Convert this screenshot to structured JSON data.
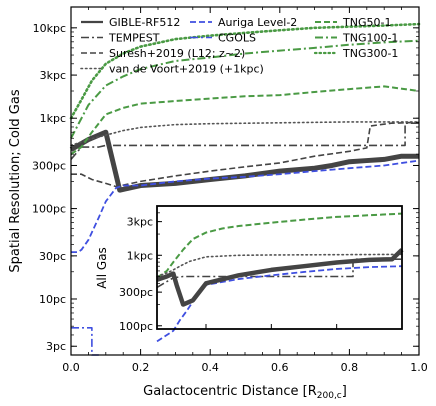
{
  "chart_data": {
    "type": "line",
    "xlabel": "Galactocentric Distance [R",
    "xlabel_sub": "200,c",
    "xlabel_end": "]",
    "ylabel": "Spatial Resolution; Cold Gas",
    "xlim": [
      0,
      1.0
    ],
    "ylim_pc": [
      2.4,
      17000
    ],
    "y_scale": "log",
    "x_ticks": [
      "0.0",
      "0.2",
      "0.4",
      "0.6",
      "0.8",
      "1.0"
    ],
    "y_ticks": [
      "3pc",
      "10pc",
      "30pc",
      "100pc",
      "300pc",
      "1kpc",
      "3kpc",
      "10kpc"
    ],
    "y_tick_values_pc": [
      3,
      10,
      30,
      100,
      300,
      1000,
      3000,
      10000
    ],
    "legend_position": "top",
    "series": [
      {
        "name": "GIBLE-RF512",
        "color": "#444444",
        "dash": "solid",
        "width": 5,
        "x": [
          0.0,
          0.05,
          0.1,
          0.14,
          0.2,
          0.3,
          0.4,
          0.5,
          0.6,
          0.7,
          0.75,
          0.8,
          0.85,
          0.9,
          0.95,
          1.0
        ],
        "y": [
          450,
          580,
          700,
          160,
          180,
          190,
          210,
          230,
          260,
          280,
          300,
          330,
          340,
          350,
          380,
          380
        ]
      },
      {
        "name": "TEMPEST",
        "color": "#444444",
        "dash": "dashdot",
        "width": 1.6,
        "x": [
          0.0,
          0.03,
          0.08,
          0.1,
          0.2,
          0.4,
          0.6,
          0.8,
          0.96,
          0.96,
          1.0
        ],
        "y": [
          350,
          480,
          480,
          500,
          500,
          500,
          500,
          500,
          500,
          880,
          880
        ]
      },
      {
        "name": "Suresh+2019 (L12; z~2)",
        "color": "#444444",
        "dash": "dashed",
        "width": 1.6,
        "x": [
          0.0,
          0.03,
          0.06,
          0.1,
          0.13,
          0.2,
          0.3,
          0.4,
          0.5,
          0.6,
          0.7,
          0.8,
          0.85,
          0.86,
          0.92,
          1.0
        ],
        "y": [
          240,
          240,
          210,
          190,
          175,
          200,
          230,
          260,
          290,
          320,
          380,
          430,
          470,
          820,
          880,
          900
        ]
      },
      {
        "name": "van de Voort+2019 (+1kpc)",
        "color": "#555555",
        "dash": "dotted",
        "width": 1.6,
        "x": [
          0.0,
          0.05,
          0.1,
          0.15,
          0.2,
          0.3,
          0.4,
          0.5,
          0.6,
          0.7,
          0.8,
          0.9,
          1.0
        ],
        "y": [
          500,
          580,
          650,
          730,
          790,
          850,
          870,
          880,
          890,
          900,
          910,
          910,
          910
        ]
      },
      {
        "name": "Auriga Level-2",
        "color": "#3f4fe0",
        "dash": "dashed",
        "width": 1.8,
        "x": [
          0.0,
          0.02,
          0.03,
          0.05,
          0.08,
          0.1,
          0.13,
          0.15,
          0.2,
          0.3,
          0.4,
          0.5,
          0.6,
          0.7,
          0.8,
          0.9,
          1.0
        ],
        "y": [
          33,
          33,
          35,
          45,
          80,
          120,
          170,
          180,
          180,
          200,
          215,
          225,
          240,
          260,
          280,
          300,
          340
        ]
      },
      {
        "name": "CGOLS",
        "color": "#3f4fe0",
        "dash": "dashdot",
        "width": 1.6,
        "x": [
          0.0,
          0.06,
          0.06,
          0.08
        ],
        "y": [
          4.8,
          4.8,
          2.4,
          2.4
        ]
      },
      {
        "name": "TNG50-1",
        "color": "#4a9a44",
        "dash": "dashed",
        "width": 2.0,
        "x": [
          0.0,
          0.03,
          0.06,
          0.1,
          0.15,
          0.2,
          0.3,
          0.4,
          0.5,
          0.6,
          0.7,
          0.8,
          0.9,
          1.0
        ],
        "y": [
          400,
          480,
          700,
          1100,
          1300,
          1450,
          1550,
          1650,
          1750,
          1800,
          1950,
          2100,
          2250,
          2000
        ]
      },
      {
        "name": "TNG100-1",
        "color": "#4a9a44",
        "dash": "dashdot",
        "width": 2.0,
        "x": [
          0.0,
          0.05,
          0.1,
          0.15,
          0.2,
          0.3,
          0.4,
          0.5,
          0.6,
          0.7,
          0.8,
          0.9,
          1.0
        ],
        "y": [
          600,
          1400,
          2300,
          2900,
          3500,
          4300,
          4700,
          5200,
          5600,
          6000,
          6500,
          6900,
          7200
        ]
      },
      {
        "name": "TNG300-1",
        "color": "#4a9a44",
        "dash": "dotted",
        "width": 2.6,
        "x": [
          0.0,
          0.03,
          0.06,
          0.1,
          0.15,
          0.2,
          0.3,
          0.4,
          0.5,
          0.6,
          0.7,
          0.8,
          0.9,
          1.0
        ],
        "y": [
          1000,
          1600,
          2600,
          4000,
          5200,
          6200,
          7500,
          8200,
          8800,
          9400,
          10000,
          10300,
          10600,
          11000
        ]
      }
    ],
    "inset": {
      "ylabel": "All Gas",
      "xlim": [
        0.25,
        1.0
      ],
      "ylim_pc": [
        90,
        5000
      ],
      "y_ticks": [
        "100pc",
        "300pc",
        "1kpc",
        "3kpc"
      ],
      "y_tick_values_pc": [
        100,
        300,
        1000,
        3000
      ],
      "series": [
        {
          "name": "TNG50-1",
          "color": "#4a9a44",
          "dash": "dashed",
          "width": 2.0,
          "x": [
            0.25,
            0.28,
            0.3,
            0.33,
            0.36,
            0.4,
            0.45,
            0.5,
            0.6,
            0.7,
            0.8,
            0.9,
            1.0
          ],
          "y": [
            480,
            600,
            800,
            1200,
            1700,
            2100,
            2400,
            2600,
            2900,
            3200,
            3500,
            3700,
            3900
          ]
        },
        {
          "name": "van de Voort+2019 (+1kpc)",
          "color": "#555555",
          "dash": "dotted",
          "width": 1.6,
          "x": [
            0.25,
            0.28,
            0.3,
            0.32,
            0.35,
            0.4,
            0.5,
            0.6,
            0.7,
            0.8,
            0.9,
            1.0
          ],
          "y": [
            500,
            560,
            620,
            700,
            820,
            950,
            1000,
            1010,
            1015,
            1020,
            1025,
            1030
          ]
        },
        {
          "name": "TEMPEST",
          "color": "#444444",
          "dash": "dashdot",
          "width": 1.6,
          "x": [
            0.25,
            0.3,
            0.33,
            0.4,
            0.5,
            0.6,
            0.7,
            0.85,
            0.85,
            1.0
          ],
          "y": [
            350,
            480,
            500,
            500,
            500,
            500,
            500,
            500,
            880,
            880
          ]
        },
        {
          "name": "Auriga Level-2",
          "color": "#3f4fe0",
          "dash": "dashed",
          "width": 1.8,
          "x": [
            0.25,
            0.3,
            0.32,
            0.34,
            0.37,
            0.4,
            0.5,
            0.6,
            0.7,
            0.8,
            0.9,
            1.0
          ],
          "y": [
            60,
            85,
            120,
            160,
            260,
            380,
            460,
            520,
            580,
            640,
            680,
            700
          ]
        },
        {
          "name": "GIBLE-RF512",
          "color": "#444444",
          "dash": "solid",
          "width": 4.5,
          "x": [
            0.25,
            0.28,
            0.3,
            0.31,
            0.33,
            0.36,
            0.4,
            0.5,
            0.6,
            0.7,
            0.8,
            0.9,
            0.97,
            1.0
          ],
          "y": [
            450,
            500,
            550,
            380,
            200,
            230,
            400,
            520,
            620,
            700,
            790,
            860,
            880,
            1200
          ]
        }
      ]
    }
  }
}
